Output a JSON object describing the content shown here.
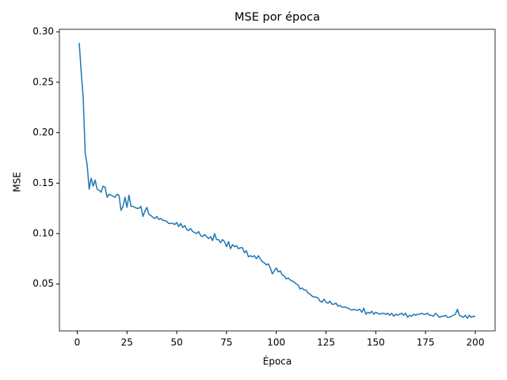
{
  "chart_data": {
    "type": "line",
    "title": "MSE por época",
    "x_label": "Época",
    "y_label": "MSE",
    "color": "#1f77b4",
    "x": [
      1,
      2,
      3,
      4,
      5,
      6,
      7,
      8,
      9,
      10,
      11,
      12,
      13,
      14,
      15,
      16,
      17,
      18,
      19,
      20,
      21,
      22,
      23,
      24,
      25,
      26,
      27,
      28,
      29,
      30,
      31,
      32,
      33,
      34,
      35,
      36,
      37,
      38,
      39,
      40,
      41,
      42,
      43,
      44,
      45,
      46,
      47,
      48,
      49,
      50,
      51,
      52,
      53,
      54,
      55,
      56,
      57,
      58,
      59,
      60,
      61,
      62,
      63,
      64,
      65,
      66,
      67,
      68,
      69,
      70,
      71,
      72,
      73,
      74,
      75,
      76,
      77,
      78,
      79,
      80,
      81,
      82,
      83,
      84,
      85,
      86,
      87,
      88,
      89,
      90,
      91,
      92,
      93,
      94,
      95,
      96,
      97,
      98,
      99,
      100,
      101,
      102,
      103,
      104,
      105,
      106,
      107,
      108,
      109,
      110,
      111,
      112,
      113,
      114,
      115,
      116,
      117,
      118,
      119,
      120,
      121,
      122,
      123,
      124,
      125,
      126,
      127,
      128,
      129,
      130,
      131,
      132,
      133,
      134,
      135,
      136,
      137,
      138,
      139,
      140,
      141,
      142,
      143,
      144,
      145,
      146,
      147,
      148,
      149,
      150,
      151,
      152,
      153,
      154,
      155,
      156,
      157,
      158,
      159,
      160,
      161,
      162,
      163,
      164,
      165,
      166,
      167,
      168,
      169,
      170,
      171,
      172,
      173,
      174,
      175,
      176,
      177,
      178,
      179,
      180,
      181,
      182,
      183,
      184,
      185,
      186,
      187,
      188,
      189,
      190,
      191,
      192,
      193,
      194,
      195,
      196,
      197,
      198,
      199,
      200
    ],
    "values": [
      0.289,
      0.26,
      0.235,
      0.18,
      0.168,
      0.144,
      0.155,
      0.147,
      0.153,
      0.144,
      0.143,
      0.141,
      0.147,
      0.146,
      0.136,
      0.139,
      0.138,
      0.137,
      0.136,
      0.139,
      0.138,
      0.123,
      0.127,
      0.136,
      0.126,
      0.138,
      0.127,
      0.127,
      0.126,
      0.125,
      0.125,
      0.127,
      0.117,
      0.122,
      0.126,
      0.119,
      0.118,
      0.116,
      0.115,
      0.117,
      0.114,
      0.115,
      0.113,
      0.113,
      0.112,
      0.11,
      0.11,
      0.11,
      0.109,
      0.111,
      0.107,
      0.11,
      0.106,
      0.108,
      0.104,
      0.103,
      0.105,
      0.102,
      0.101,
      0.1,
      0.102,
      0.098,
      0.097,
      0.099,
      0.097,
      0.095,
      0.097,
      0.093,
      0.1,
      0.094,
      0.094,
      0.091,
      0.094,
      0.092,
      0.087,
      0.092,
      0.085,
      0.089,
      0.087,
      0.088,
      0.085,
      0.086,
      0.086,
      0.081,
      0.083,
      0.077,
      0.078,
      0.077,
      0.078,
      0.075,
      0.078,
      0.075,
      0.072,
      0.071,
      0.069,
      0.07,
      0.066,
      0.06,
      0.063,
      0.066,
      0.062,
      0.063,
      0.059,
      0.058,
      0.055,
      0.056,
      0.054,
      0.053,
      0.052,
      0.05,
      0.049,
      0.045,
      0.046,
      0.044,
      0.044,
      0.041,
      0.04,
      0.038,
      0.037,
      0.037,
      0.036,
      0.033,
      0.032,
      0.035,
      0.032,
      0.031,
      0.033,
      0.03,
      0.03,
      0.031,
      0.028,
      0.029,
      0.027,
      0.027,
      0.027,
      0.026,
      0.025,
      0.024,
      0.025,
      0.024,
      0.024,
      0.025,
      0.022,
      0.026,
      0.02,
      0.022,
      0.021,
      0.023,
      0.02,
      0.022,
      0.021,
      0.02,
      0.021,
      0.021,
      0.02,
      0.021,
      0.019,
      0.021,
      0.018,
      0.02,
      0.019,
      0.02,
      0.021,
      0.019,
      0.021,
      0.017,
      0.019,
      0.018,
      0.02,
      0.019,
      0.02,
      0.02,
      0.021,
      0.02,
      0.02,
      0.021,
      0.019,
      0.019,
      0.018,
      0.021,
      0.019,
      0.017,
      0.018,
      0.018,
      0.019,
      0.017,
      0.017,
      0.018,
      0.019,
      0.02,
      0.025,
      0.019,
      0.018,
      0.017,
      0.019,
      0.016,
      0.019,
      0.017,
      0.018,
      0.018
    ],
    "xlim": [
      -8.95,
      209.95
    ],
    "xticks": [
      0,
      25,
      50,
      75,
      100,
      125,
      150,
      175,
      200
    ],
    "ylim": [
      0.0035,
      0.3025
    ],
    "yticks": [
      0.05,
      {
        "value": 0.1,
        "label": "0.10"
      },
      0.15,
      {
        "value": 0.2,
        "label": "0.20"
      },
      0.25,
      {
        "value": 0.3,
        "label": "0.30"
      }
    ]
  }
}
